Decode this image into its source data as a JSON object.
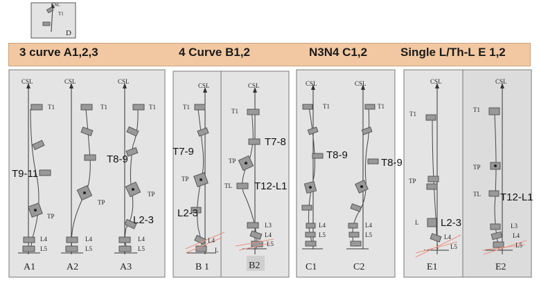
{
  "headers": {
    "g1": "3 curve A1,2,3",
    "g2": "4 Curve B1,2",
    "g3": "N3N4 C1,2",
    "g4": "Single L/Th-L  E 1,2"
  },
  "inset": {
    "csl": "CSL",
    "t1": "T1",
    "letter": "D"
  },
  "labels": {
    "csl": "CSL",
    "t1": "T1",
    "tp": "TP",
    "tl": "TL",
    "l": "L",
    "l3": "L3",
    "l4": "L4",
    "l5": "L5"
  },
  "regions": {
    "t9_11": "T9-11",
    "t8_9": "T8-9",
    "l2_3": "L2-3",
    "t7_9": "T7-9",
    "t7_8": "T7-8",
    "t12_l1": "T12-L1"
  },
  "captions": {
    "a1": "A1",
    "a2": "A2",
    "a3": "A3",
    "b1": "B 1",
    "b2": "B2",
    "c1": "C1",
    "c2": "C2",
    "e1": "E1",
    "e2": "E2"
  }
}
